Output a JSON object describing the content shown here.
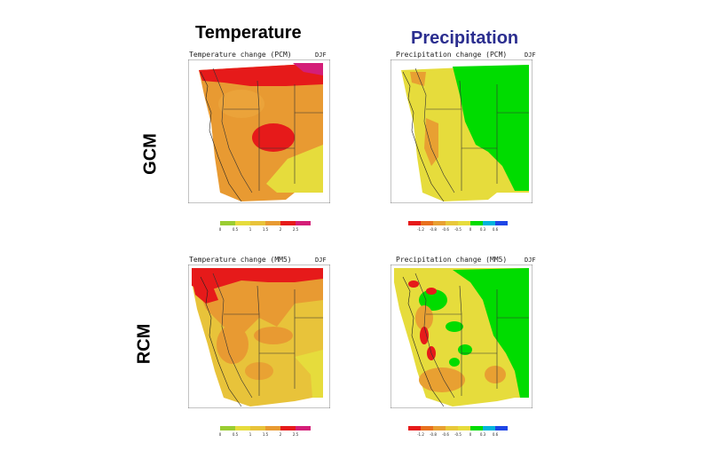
{
  "titles": {
    "temperature": "Temperature",
    "precipitation": "Precipitation",
    "gcm": "GCM",
    "rcm": "RCM"
  },
  "colors": {
    "precip_title": "#2b2e8f",
    "temp_green": "#9acd32",
    "temp_lightyellow": "#e6dc3c",
    "temp_yellow": "#e8c33a",
    "temp_orange": "#e89a32",
    "temp_red": "#e61a1a",
    "temp_magenta": "#d41e78",
    "precip_red": "#e61a1a",
    "precip_orange": "#e8a032",
    "precip_yellow": "#e6dc3c",
    "precip_green": "#00dc00",
    "precip_cyan": "#00b4dc",
    "precip_blue": "#1e46e6"
  },
  "panels": {
    "temp_gcm": {
      "title": "Temperature change (PCM)",
      "season": "DJF"
    },
    "precip_gcm": {
      "title": "Precipitation change (PCM)",
      "season": "DJF"
    },
    "temp_rcm": {
      "title": "Temperature change (MM5)",
      "season": "DJF"
    },
    "precip_rcm": {
      "title": "Precipitation change (MM5)",
      "season": "DJF"
    }
  },
  "temp_legend_gcm": [
    "0",
    "0.5",
    "1",
    "1.5",
    "2",
    "2.5"
  ],
  "temp_legend_rcm": [
    "0",
    "0.5",
    "1",
    "1.5",
    "2",
    "2.5"
  ],
  "precip_legend": [
    "-1.2",
    "-0.8",
    "-0.6",
    "-0.5",
    "0",
    "0.3",
    "0.6"
  ]
}
